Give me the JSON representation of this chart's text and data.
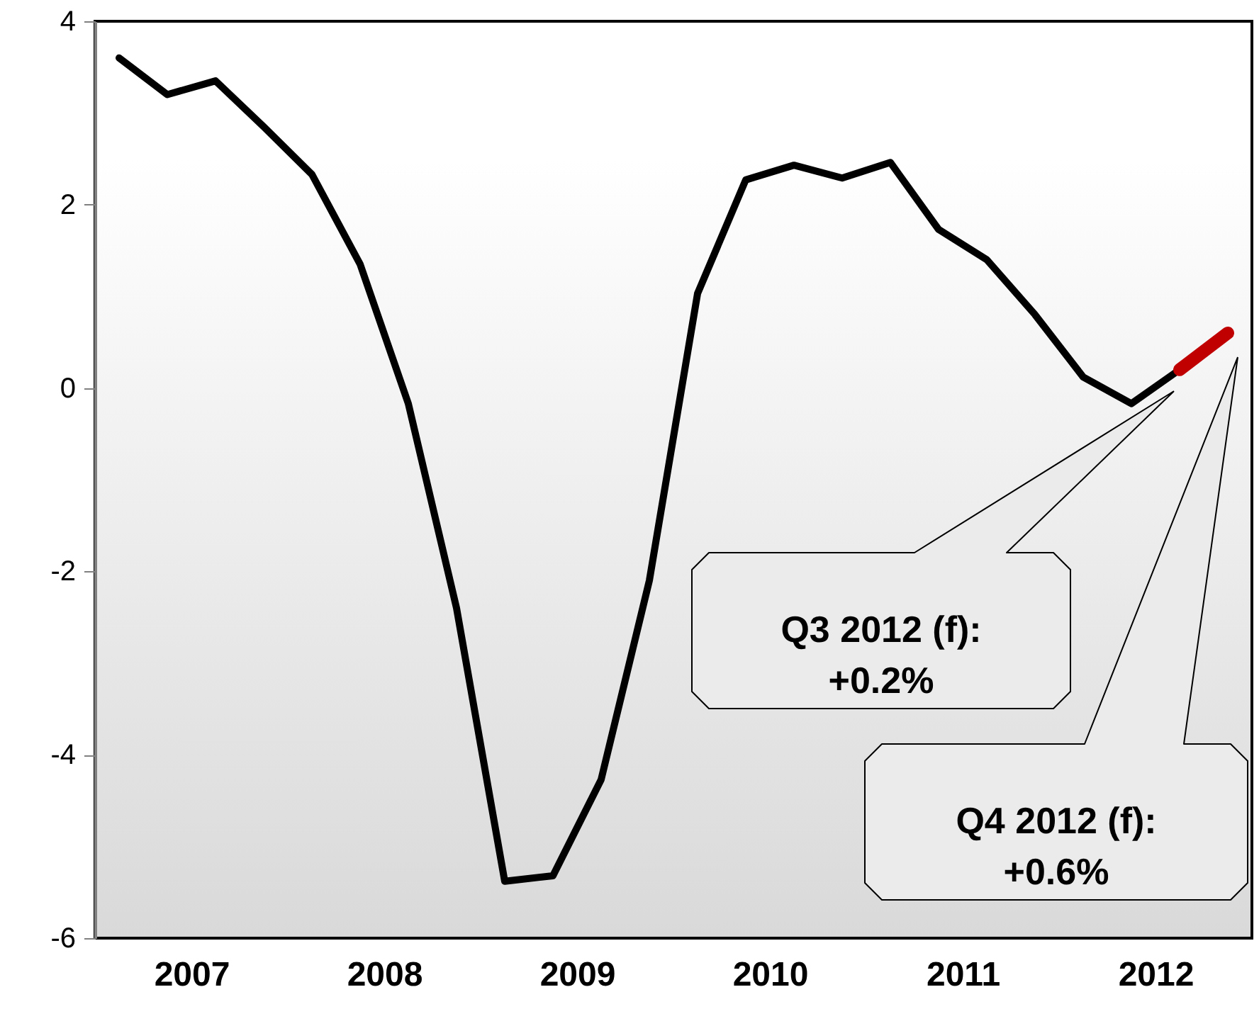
{
  "chart_data": {
    "type": "line",
    "x": [
      2007.125,
      2007.375,
      2007.625,
      2007.875,
      2008.125,
      2008.375,
      2008.625,
      2008.875,
      2009.125,
      2009.375,
      2009.625,
      2009.875,
      2010.125,
      2010.375,
      2010.625,
      2010.875,
      2011.125,
      2011.375,
      2011.625,
      2011.875,
      2012.125,
      2012.375,
      2012.625
    ],
    "series": [
      {
        "color": "#000000",
        "values": [
          3.6,
          3.2,
          3.35,
          2.85,
          2.33,
          1.35,
          -0.17,
          -2.4,
          -5.38,
          -5.32,
          -4.27,
          -2.1,
          1.03,
          2.27,
          2.43,
          2.29,
          2.46,
          1.73,
          1.4,
          0.8,
          0.12,
          -0.17,
          0.2
        ]
      },
      {
        "color": "#c00000",
        "x": [
          2012.625,
          2012.875
        ],
        "values": [
          0.2,
          0.6
        ]
      }
    ],
    "xlim": [
      2007,
      2013
    ],
    "xticks": [
      {
        "value": 2007.5,
        "label": "2007"
      },
      {
        "value": 2008.5,
        "label": "2008"
      },
      {
        "value": 2009.5,
        "label": "2009"
      },
      {
        "value": 2010.5,
        "label": "2010"
      },
      {
        "value": 2011.5,
        "label": "2011"
      },
      {
        "value": 2012.5,
        "label": "2012"
      }
    ],
    "ylim": [
      -6,
      4
    ],
    "yticks": [
      -6,
      -4,
      -2,
      0,
      2,
      4
    ],
    "grid": false,
    "marker": "none",
    "line_style": "solid",
    "annotations": [
      "Q3 2012 (f):\n+0.2%",
      "Q4 2012 (f):\n+0.6%"
    ]
  }
}
